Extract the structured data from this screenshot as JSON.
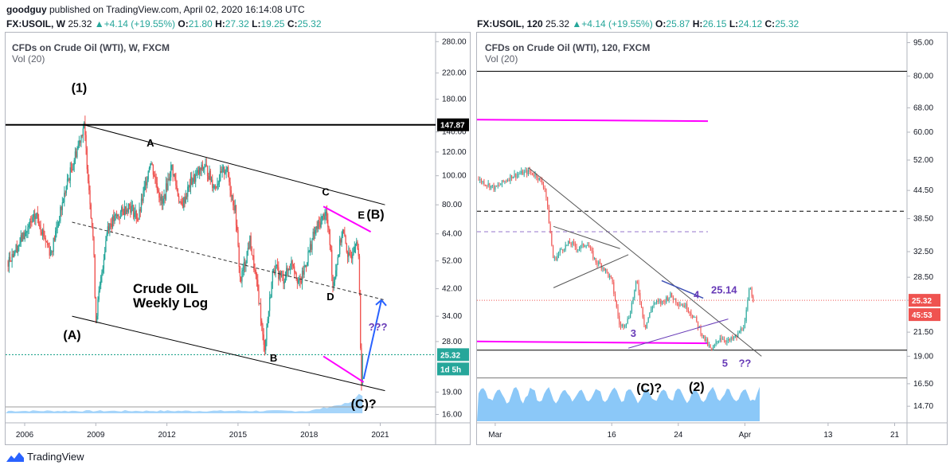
{
  "header": {
    "publisher": "goodguy",
    "published_text": "published on TradingView.com, April 02, 2020 16:14:08 UTC",
    "left_quote": {
      "symbol": "FX:USOIL, W",
      "last": "25.32",
      "change": "+4.14 (+19.55%)",
      "o": "21.80",
      "h": "27.32",
      "l": "19.25",
      "c": "25.32"
    },
    "right_quote": {
      "symbol": "FX:USOIL, 120",
      "last": "25.32",
      "change": "+4.14 (+19.55%)",
      "o": "25.87",
      "h": "26.15",
      "l": "24.12",
      "c": "25.32"
    },
    "ohlc_labels": {
      "o": "O:",
      "h": "H:",
      "l": "L:",
      "c": "C:"
    }
  },
  "colors": {
    "up": "#26a69a",
    "down": "#ef5350",
    "magenta": "#ff00ff",
    "blue_arrow": "#2962ff",
    "purple": "#673ab7",
    "price_line": "#089981",
    "volume": "#64b5f6"
  },
  "chart_data": [
    {
      "type": "candlestick",
      "title": "CFDs on Crude Oil (WTI), W, FXCM",
      "indicator": "Vol (20)",
      "scale": "log",
      "x_ticks": [
        "2006",
        "2009",
        "2012",
        "2015",
        "2018",
        "2021"
      ],
      "y_ticks": [
        "280.00",
        "220.00",
        "180.00",
        "140.00",
        "120.00",
        "100.00",
        "80.00",
        "64.00",
        "52.00",
        "42.00",
        "34.00",
        "28.00",
        "19.00",
        "16.00"
      ],
      "ylim": [
        15,
        300
      ],
      "price_path": [
        [
          2005.3,
          52
        ],
        [
          2006.5,
          74
        ],
        [
          2007.1,
          55
        ],
        [
          2007.8,
          95
        ],
        [
          2008.5,
          147.87
        ],
        [
          2008.9,
          60
        ],
        [
          2009.0,
          33
        ],
        [
          2009.5,
          68
        ],
        [
          2010.4,
          80
        ],
        [
          2010.8,
          72
        ],
        [
          2011.3,
          113
        ],
        [
          2011.8,
          80
        ],
        [
          2012.2,
          108
        ],
        [
          2012.6,
          78
        ],
        [
          2013.0,
          95
        ],
        [
          2013.6,
          108
        ],
        [
          2014.0,
          92
        ],
        [
          2014.5,
          107
        ],
        [
          2014.9,
          75
        ],
        [
          2015.1,
          44
        ],
        [
          2015.5,
          61
        ],
        [
          2015.9,
          38
        ],
        [
          2016.1,
          26
        ],
        [
          2016.5,
          50
        ],
        [
          2016.9,
          45
        ],
        [
          2017.3,
          52
        ],
        [
          2017.6,
          43
        ],
        [
          2018.2,
          64
        ],
        [
          2018.7,
          76
        ],
        [
          2018.9,
          58
        ],
        [
          2019.0,
          43
        ],
        [
          2019.4,
          66
        ],
        [
          2019.7,
          52
        ],
        [
          2020.0,
          63
        ],
        [
          2020.1,
          50
        ],
        [
          2020.2,
          20
        ],
        [
          2020.25,
          25.32
        ]
      ],
      "labels": [
        "(1)",
        "A",
        "C",
        "E",
        "(B)",
        "D",
        "B",
        "(A)",
        "(C)?",
        "???"
      ],
      "annotation_title": [
        "Crude OIL",
        "Weekly Log"
      ],
      "price_labels": {
        "high": "147.87",
        "last": "25.32",
        "countdown": "1d 5h"
      }
    },
    {
      "type": "candlestick",
      "title": "CFDs on Crude Oil (WTI), 120, FXCM",
      "indicator": "Vol (20)",
      "scale": "log",
      "x_ticks": [
        "Mar",
        "16",
        "24",
        "Apr",
        "13",
        "21"
      ],
      "y_ticks": [
        "95.00",
        "80.00",
        "68.00",
        "60.00",
        "52.00",
        "44.50",
        "38.50",
        "32.50",
        "28.50",
        "25.32",
        "21.50",
        "19.00",
        "16.50",
        "14.70"
      ],
      "ylim": [
        13.5,
        100
      ],
      "price_path": [
        [
          0,
          47
        ],
        [
          2,
          45
        ],
        [
          4,
          48
        ],
        [
          6,
          49
        ],
        [
          7,
          48
        ],
        [
          8,
          45
        ],
        [
          9,
          31
        ],
        [
          10,
          33
        ],
        [
          11,
          34
        ],
        [
          12,
          33
        ],
        [
          13,
          34
        ],
        [
          14,
          31
        ],
        [
          15,
          30
        ],
        [
          16,
          28
        ],
        [
          17,
          22
        ],
        [
          18,
          23
        ],
        [
          19,
          28
        ],
        [
          20,
          22
        ],
        [
          21,
          25
        ],
        [
          22,
          25
        ],
        [
          23,
          26
        ],
        [
          24,
          25
        ],
        [
          25,
          24.5
        ],
        [
          26,
          23
        ],
        [
          27,
          21
        ],
        [
          28,
          19.5
        ],
        [
          29,
          21
        ],
        [
          30,
          20.5
        ],
        [
          31,
          21
        ],
        [
          32,
          22.5
        ],
        [
          32.6,
          27.3
        ],
        [
          33,
          25.32
        ]
      ],
      "labels": [
        "3",
        "4",
        "25.14",
        "5",
        "??",
        "(C)?",
        "(2)"
      ],
      "price_labels": {
        "last": "25.32",
        "countdown": "45:53"
      }
    }
  ],
  "footer": {
    "brand": "TradingView"
  }
}
